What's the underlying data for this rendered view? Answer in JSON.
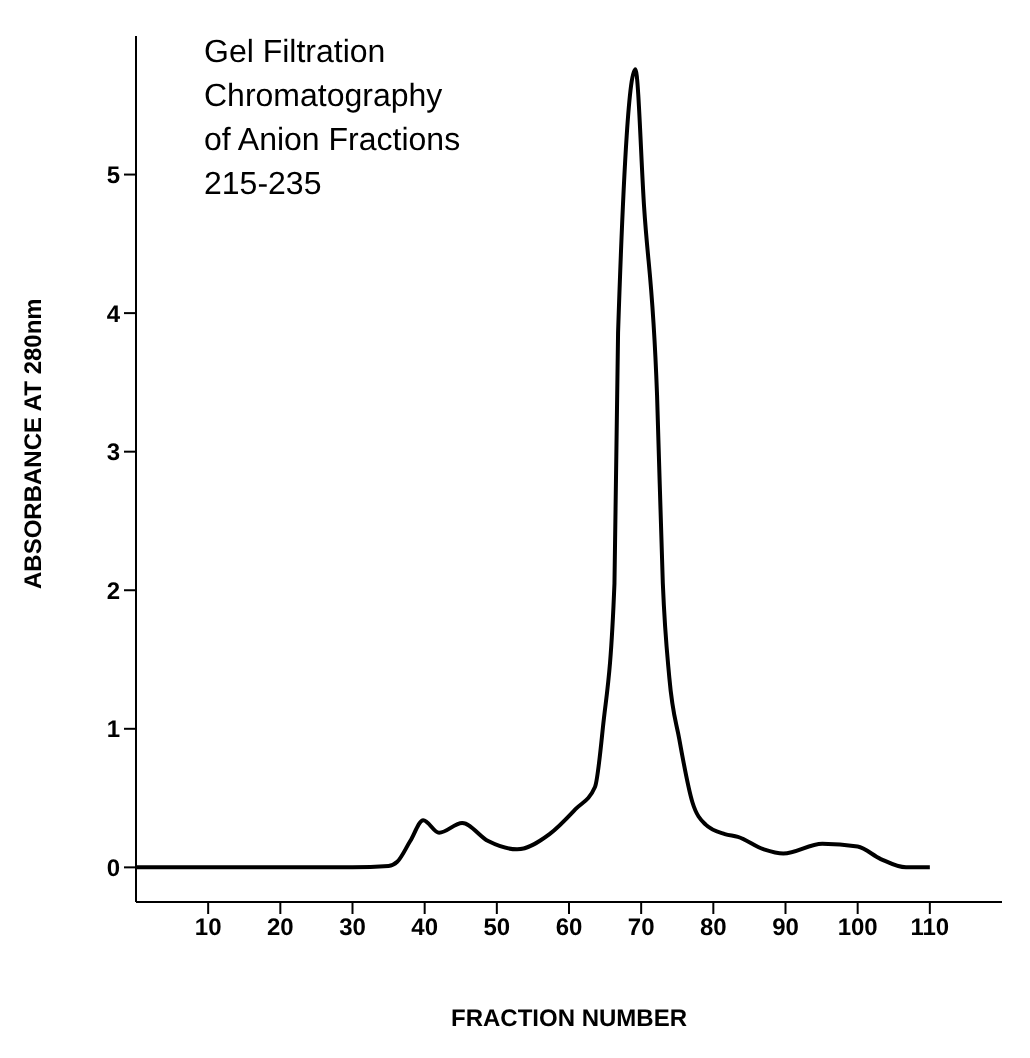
{
  "chart_data": {
    "type": "line",
    "title": "Gel Filtration\nChromatography\nof Anion Fractions\n215-235",
    "xlabel": "FRACTION NUMBER",
    "ylabel": "ABSORBANCE AT 280nm",
    "x": [
      0,
      10,
      20,
      30,
      35,
      36.2,
      38,
      39.8,
      42,
      45.2,
      48.8,
      52.8,
      57.3,
      60.9,
      63.6,
      64.7,
      66.3,
      66.8,
      69.2,
      70.4,
      72.2,
      73,
      73.9,
      75.3,
      77.1,
      78.9,
      81.6,
      83.4,
      87,
      89.7,
      95.1,
      100,
      103.2,
      106.7,
      110
    ],
    "series": [
      {
        "color": "#000000",
        "values": [
          0,
          0,
          0,
          0,
          0.01,
          0.04,
          0.19,
          0.34,
          0.25,
          0.32,
          0.19,
          0.13,
          0.24,
          0.42,
          0.58,
          1.01,
          2.05,
          3.86,
          5.76,
          4.77,
          3.41,
          2.05,
          1.37,
          0.92,
          0.47,
          0.31,
          0.24,
          0.22,
          0.13,
          0.1,
          0.17,
          0.15,
          0.06,
          0,
          0
        ]
      }
    ],
    "xlim": [
      0,
      120
    ],
    "xticks": [
      10,
      20,
      30,
      40,
      50,
      60,
      70,
      80,
      90,
      100,
      110
    ],
    "ylim": [
      -0.25,
      6
    ],
    "yticks": [
      0,
      1,
      2,
      3,
      4,
      5
    ],
    "grid": false,
    "marker": "none",
    "line_style": "solid"
  }
}
